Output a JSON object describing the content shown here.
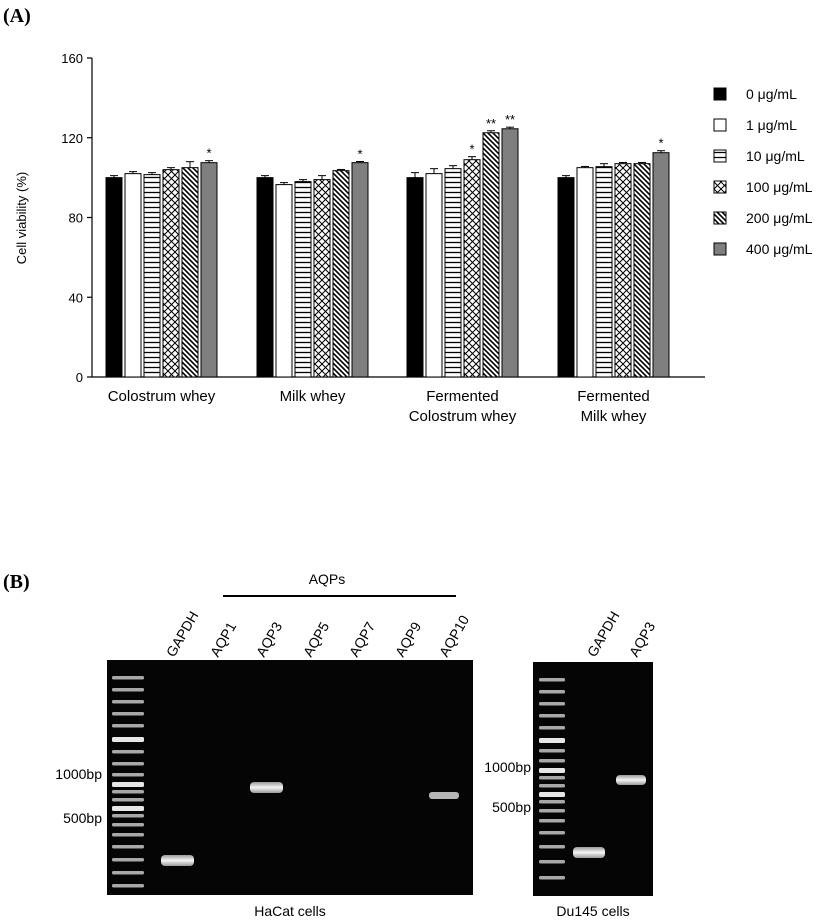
{
  "figure": {
    "panel_a_label": "(A)",
    "panel_b_label": "(B)"
  },
  "chart_data": {
    "type": "bar",
    "title": "",
    "xlabel": "",
    "ylabel": "Cell viability (%)",
    "ylim": [
      0,
      160
    ],
    "yticks": [
      0,
      40,
      80,
      120,
      160
    ],
    "grid": false,
    "legend_position": "right",
    "categories": [
      [
        "Colostrum whey"
      ],
      [
        "Milk whey"
      ],
      [
        "Fermented",
        "Colostrum whey"
      ],
      [
        "Fermented",
        "Milk whey"
      ]
    ],
    "series": [
      {
        "name": "0 μg/mL",
        "pattern": "solid-black",
        "values": [
          100,
          100,
          100,
          100
        ],
        "errors": [
          1,
          1,
          2.5,
          1
        ],
        "marks": [
          "",
          "",
          "",
          ""
        ]
      },
      {
        "name": "1 μg/mL",
        "pattern": "white",
        "values": [
          102,
          96.5,
          102,
          105
        ],
        "errors": [
          1,
          1,
          2.5,
          0.6
        ],
        "marks": [
          "",
          "",
          "",
          ""
        ]
      },
      {
        "name": "10 μg/mL",
        "pattern": "horizontal",
        "values": [
          101.5,
          98,
          104.5,
          105.5
        ],
        "errors": [
          1,
          1,
          1.5,
          1.5
        ],
        "marks": [
          "",
          "",
          "",
          ""
        ]
      },
      {
        "name": "100 μg/mL",
        "pattern": "crosshatch",
        "values": [
          104,
          99,
          109,
          107
        ],
        "errors": [
          1,
          2,
          1.5,
          0.6
        ],
        "marks": [
          "",
          "",
          "*",
          ""
        ]
      },
      {
        "name": "200 μg/mL",
        "pattern": "diagonal",
        "values": [
          105,
          103.5,
          122.5,
          107
        ],
        "errors": [
          3,
          0.6,
          1,
          0.6
        ],
        "marks": [
          "",
          "",
          "**",
          ""
        ]
      },
      {
        "name": "400 μg/mL",
        "pattern": "solid-gray",
        "values": [
          107.5,
          107.5,
          124.5,
          112.5
        ],
        "errors": [
          1,
          0.6,
          0.8,
          1
        ],
        "marks": [
          "*",
          "*",
          "**",
          "*"
        ]
      }
    ]
  },
  "gel_haCat": {
    "group_label": "AQPs",
    "lanes": [
      "GAPDH",
      "AQP1",
      "AQP3",
      "AQP5",
      "AQP7",
      "AQP9",
      "AQP10"
    ],
    "markers": [
      "1000bp",
      "500bp"
    ],
    "caption": "HaCat cells"
  },
  "gel_du145": {
    "lanes": [
      "GAPDH",
      "AQP3"
    ],
    "markers": [
      "1000bp",
      "500bp"
    ],
    "caption": "Du145 cells"
  }
}
